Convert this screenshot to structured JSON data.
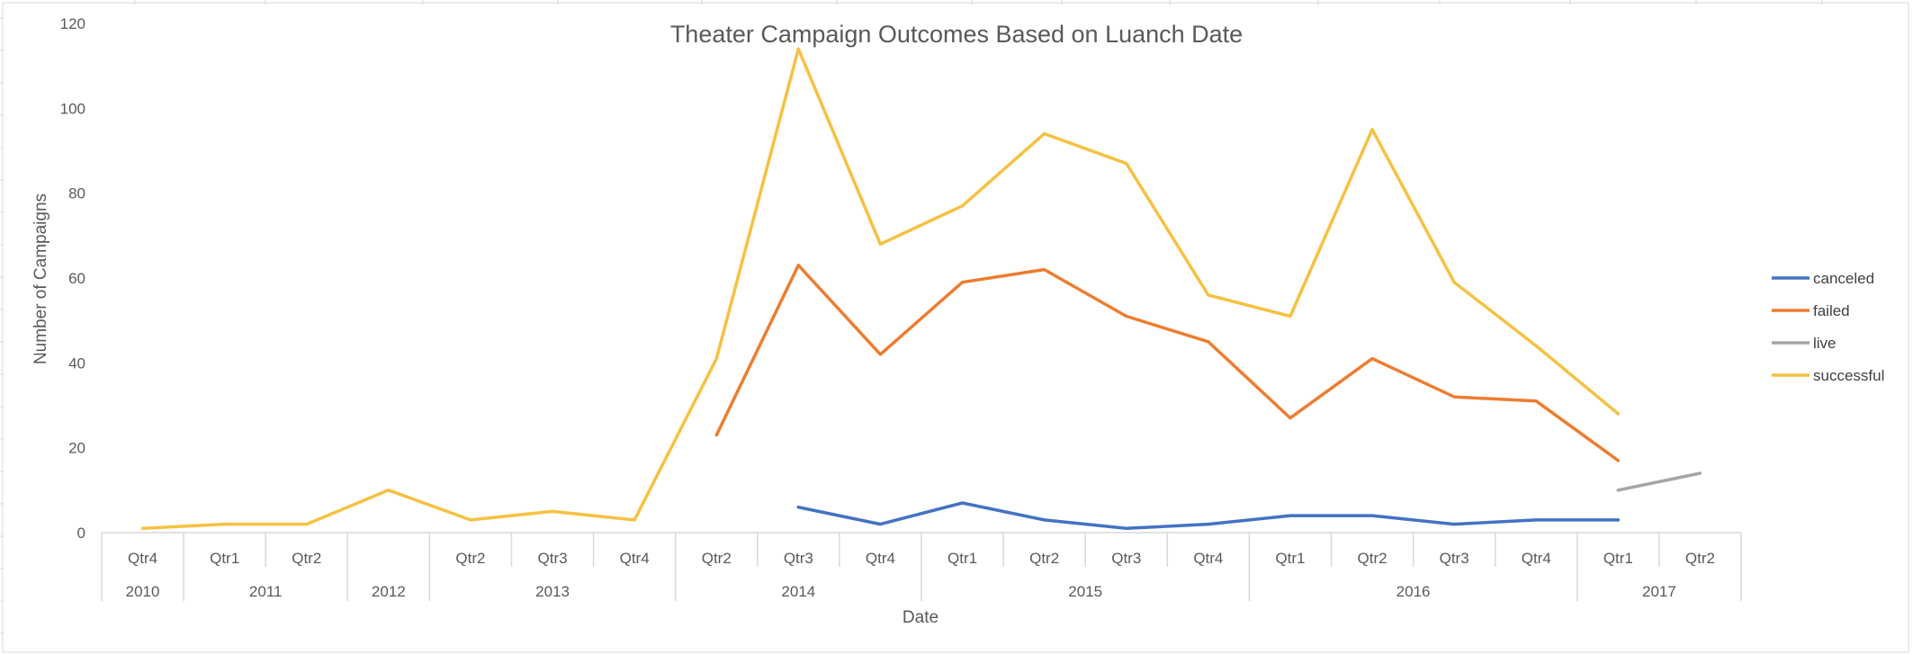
{
  "chart_data": {
    "type": "line",
    "title": "Theater Campaign Outcomes Based on Luanch Date",
    "xlabel": "Date",
    "ylabel": "Number of Campaigns",
    "ylim": [
      0,
      120
    ],
    "y_ticks": [
      0,
      20,
      40,
      60,
      80,
      100,
      120
    ],
    "categories": [
      {
        "quarter": "Qtr4",
        "year": "2010"
      },
      {
        "quarter": "Qtr1",
        "year": "2011"
      },
      {
        "quarter": "Qtr2",
        "year": "2011"
      },
      {
        "quarter": "",
        "year": "2012"
      },
      {
        "quarter": "Qtr2",
        "year": "2013"
      },
      {
        "quarter": "Qtr3",
        "year": "2013"
      },
      {
        "quarter": "Qtr4",
        "year": "2013"
      },
      {
        "quarter": "Qtr2",
        "year": "2014"
      },
      {
        "quarter": "Qtr3",
        "year": "2014"
      },
      {
        "quarter": "Qtr4",
        "year": "2014"
      },
      {
        "quarter": "Qtr1",
        "year": "2015"
      },
      {
        "quarter": "Qtr2",
        "year": "2015"
      },
      {
        "quarter": "Qtr3",
        "year": "2015"
      },
      {
        "quarter": "Qtr4",
        "year": "2015"
      },
      {
        "quarter": "Qtr1",
        "year": "2016"
      },
      {
        "quarter": "Qtr2",
        "year": "2016"
      },
      {
        "quarter": "Qtr3",
        "year": "2016"
      },
      {
        "quarter": "Qtr4",
        "year": "2016"
      },
      {
        "quarter": "Qtr1",
        "year": "2017"
      },
      {
        "quarter": "Qtr2",
        "year": "2017"
      }
    ],
    "years": [
      "2010",
      "2011",
      "2012",
      "2013",
      "2014",
      "2015",
      "2016",
      "2017"
    ],
    "series": [
      {
        "name": "canceled",
        "color": "#4472C4",
        "values": [
          null,
          null,
          null,
          null,
          null,
          null,
          null,
          null,
          6,
          2,
          7,
          3,
          1,
          2,
          4,
          4,
          2,
          3,
          3,
          null
        ]
      },
      {
        "name": "failed",
        "color": "#ED7D31",
        "values": [
          null,
          null,
          null,
          null,
          null,
          null,
          null,
          23,
          63,
          42,
          59,
          62,
          51,
          45,
          27,
          41,
          32,
          31,
          17,
          null
        ]
      },
      {
        "name": "live",
        "color": "#A5A5A5",
        "values": [
          null,
          null,
          null,
          null,
          null,
          null,
          null,
          null,
          null,
          null,
          null,
          null,
          null,
          null,
          null,
          null,
          null,
          null,
          10,
          14
        ]
      },
      {
        "name": "successful",
        "color": "#F6C142",
        "values": [
          1,
          2,
          2,
          10,
          3,
          5,
          3,
          41,
          114,
          68,
          77,
          94,
          87,
          56,
          51,
          95,
          59,
          44,
          28,
          null
        ]
      }
    ],
    "grid": false,
    "legend_position": "right"
  }
}
